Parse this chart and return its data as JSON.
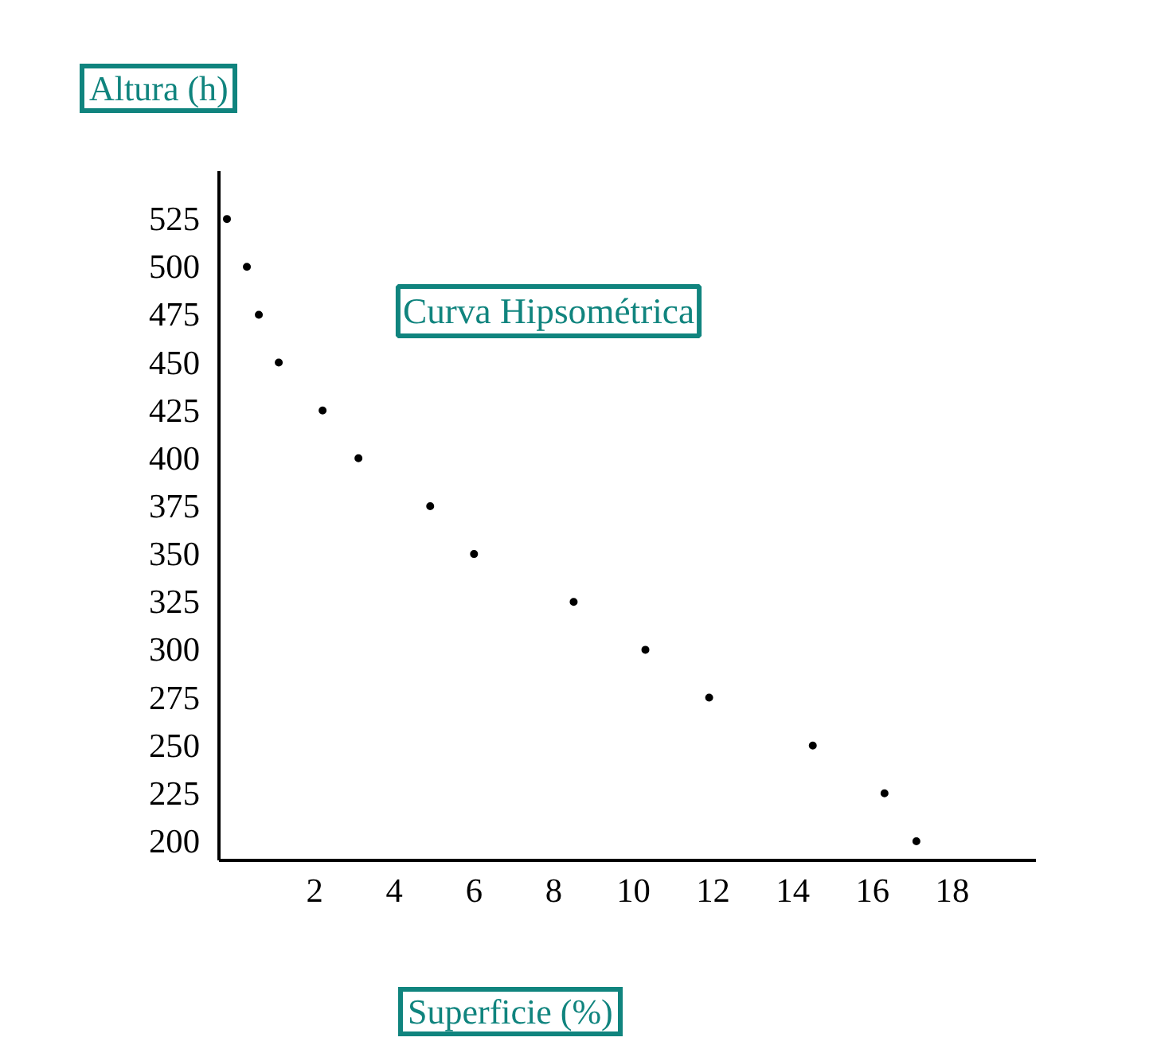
{
  "chart_data": {
    "type": "scatter",
    "title": "Curva Hipsométrica",
    "xlabel": "Superficie (%)",
    "ylabel": "Altura (h)",
    "x": [
      -0.2,
      0.3,
      0.6,
      1.1,
      2.2,
      3.1,
      4.9,
      6.0,
      8.5,
      10.3,
      11.9,
      14.5,
      16.3,
      17.1
    ],
    "series": [
      {
        "color": "#000000",
        "values": [
          525,
          500,
          475,
          450,
          425,
          400,
          375,
          350,
          325,
          300,
          275,
          250,
          225,
          200
        ]
      }
    ],
    "xlim": [
      -0.4,
      20.1
    ],
    "ylim": [
      190,
      550
    ],
    "xticks": [
      2,
      4,
      6,
      8,
      10,
      12,
      14,
      16,
      18
    ],
    "yticks": [
      200,
      225,
      250,
      275,
      300,
      325,
      350,
      375,
      400,
      425,
      450,
      475,
      500,
      525
    ],
    "grid": false,
    "marker": "circle"
  }
}
